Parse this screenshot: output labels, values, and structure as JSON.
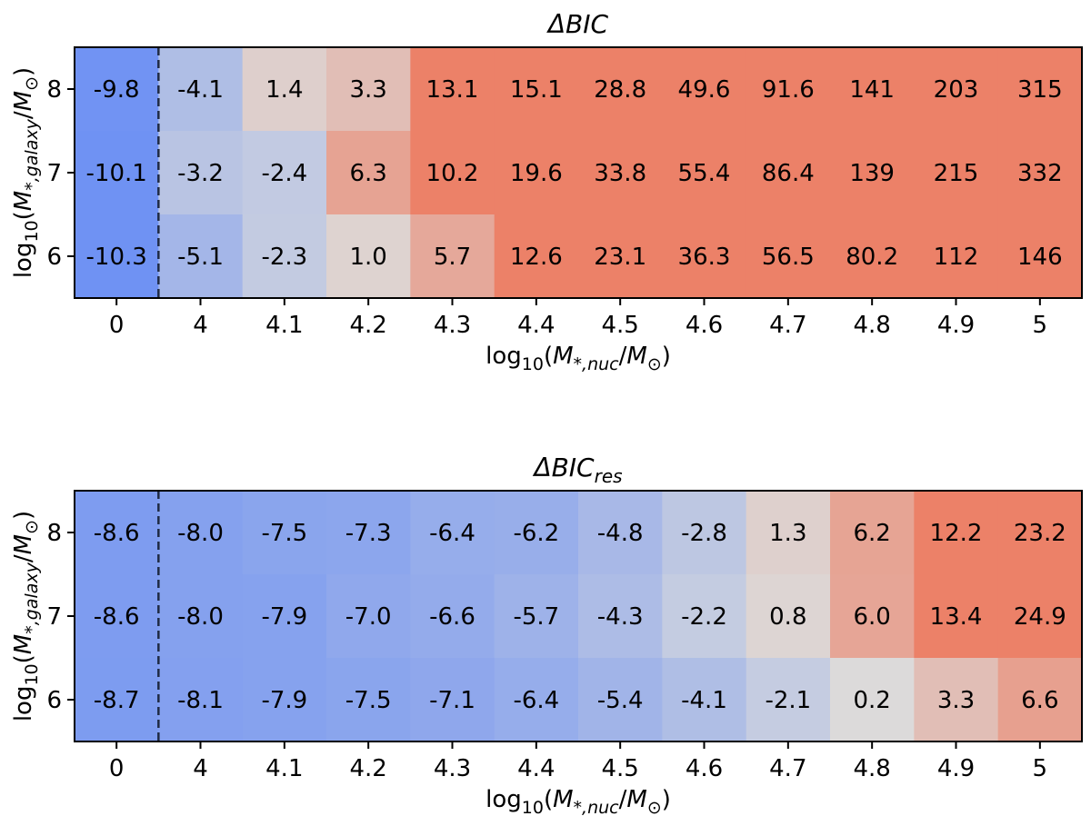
{
  "colors": {
    "scale_low": "#6f92f3",
    "scale_mid": "#dcdcdc",
    "scale_high": "#ec8168"
  },
  "chart_data": [
    {
      "type": "heatmap",
      "title": "ΔBIC",
      "title_main": "ΔBIC",
      "title_sub": "",
      "xlabel": "log10(M*,nuc/M⊙)",
      "ylabel": "log10(M*,galaxy/M⊙)",
      "x_categories": [
        "0",
        "4",
        "4.1",
        "4.2",
        "4.3",
        "4.4",
        "4.5",
        "4.6",
        "4.7",
        "4.8",
        "4.9",
        "5"
      ],
      "y_categories": [
        "8",
        "7",
        "6"
      ],
      "separator_after_column": "0",
      "color_limits": [
        -10,
        10
      ],
      "values": [
        [
          "-9.8",
          "-4.1",
          "1.4",
          "3.3",
          "13.1",
          "15.1",
          "28.8",
          "49.6",
          "91.6",
          "141",
          "203",
          "315"
        ],
        [
          "-10.1",
          "-3.2",
          "-2.4",
          "6.3",
          "10.2",
          "19.6",
          "33.8",
          "55.4",
          "86.4",
          "139",
          "215",
          "332"
        ],
        [
          "-10.3",
          "-5.1",
          "-2.3",
          "1.0",
          "5.7",
          "12.6",
          "23.1",
          "36.3",
          "56.5",
          "80.2",
          "112",
          "146"
        ]
      ]
    },
    {
      "type": "heatmap",
      "title": "ΔBICres",
      "title_main": "ΔBIC",
      "title_sub": "res",
      "xlabel": "log10(M*,nuc/M⊙)",
      "ylabel": "log10(M*,galaxy/M⊙)",
      "x_categories": [
        "0",
        "4",
        "4.1",
        "4.2",
        "4.3",
        "4.4",
        "4.5",
        "4.6",
        "4.7",
        "4.8",
        "4.9",
        "5"
      ],
      "y_categories": [
        "8",
        "7",
        "6"
      ],
      "separator_after_column": "0",
      "color_limits": [
        -10,
        10
      ],
      "values": [
        [
          "-8.6",
          "-8.0",
          "-7.5",
          "-7.3",
          "-6.4",
          "-6.2",
          "-4.8",
          "-2.8",
          "1.3",
          "6.2",
          "12.2",
          "23.2"
        ],
        [
          "-8.6",
          "-8.0",
          "-7.9",
          "-7.0",
          "-6.6",
          "-5.7",
          "-4.3",
          "-2.2",
          "0.8",
          "6.0",
          "13.4",
          "24.9"
        ],
        [
          "-8.7",
          "-8.1",
          "-7.9",
          "-7.5",
          "-7.1",
          "-6.4",
          "-5.4",
          "-4.1",
          "-2.1",
          "0.2",
          "3.3",
          "6.6"
        ]
      ]
    }
  ]
}
